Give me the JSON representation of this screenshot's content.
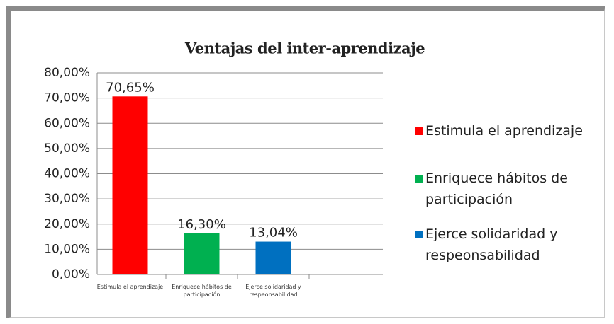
{
  "chart_data": {
    "type": "bar",
    "title": "Ventajas del inter-aprendizaje",
    "categories": [
      "Estimula el aprendizaje",
      "Enriquece hábitos de participación",
      "Ejerce solidaridad y respeonsabilidad"
    ],
    "values": [
      70.65,
      16.3,
      13.04
    ],
    "value_labels": [
      "70,65%",
      "16,30%",
      "13,04%"
    ],
    "colors": [
      "#ff0000",
      "#00b050",
      "#0070c0"
    ],
    "ylim": [
      0,
      80
    ],
    "yticks": [
      {
        "value": 0,
        "label": "0,00%"
      },
      {
        "value": 10,
        "label": "10,00%"
      },
      {
        "value": 20,
        "label": "20,00%"
      },
      {
        "value": 30,
        "label": "30,00%"
      },
      {
        "value": 40,
        "label": "40,00%"
      },
      {
        "value": 50,
        "label": "50,00%"
      },
      {
        "value": 60,
        "label": "60,00%"
      },
      {
        "value": 70,
        "label": "70,00%"
      },
      {
        "value": 80,
        "label": "80,00%"
      }
    ],
    "grid": true,
    "legend": "right"
  }
}
